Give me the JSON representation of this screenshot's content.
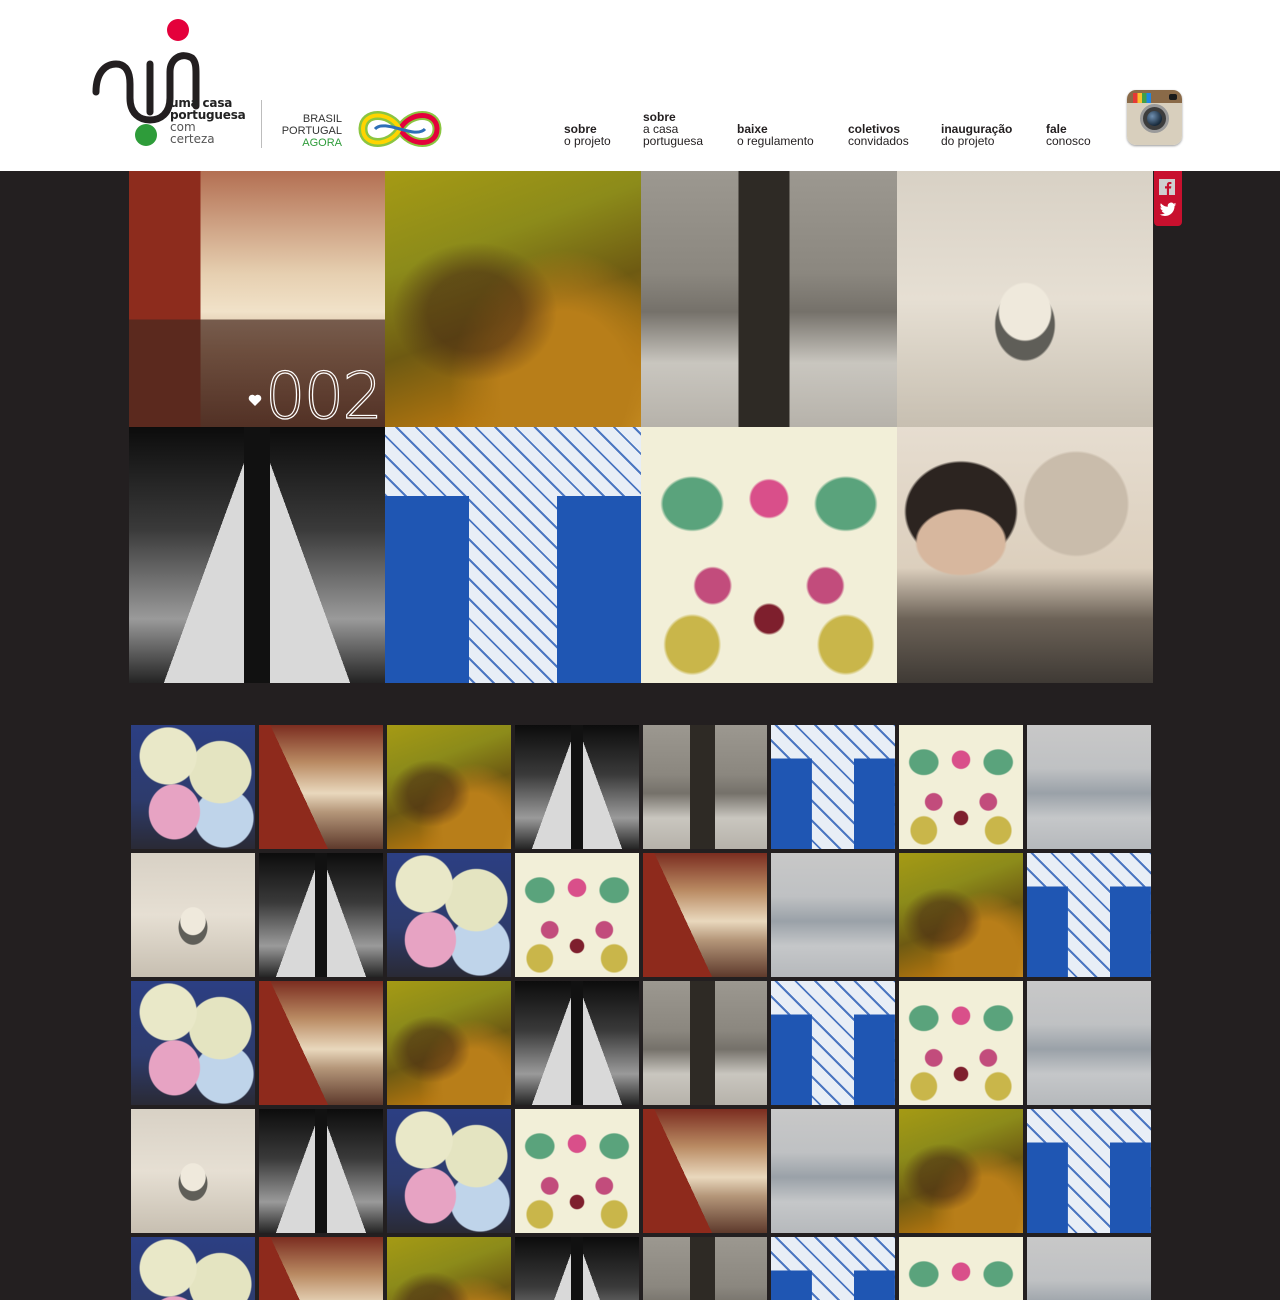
{
  "brand": {
    "logo_lines": [
      "uma casa",
      "portuguesa",
      "com",
      "certeza"
    ],
    "partner_lines": [
      "BRASIL",
      "PORTUGAL",
      "AGORA"
    ],
    "colors": {
      "red": "#e4003b",
      "green": "#2e9c3a",
      "accent": "#c8102e"
    }
  },
  "nav": [
    {
      "bold": "sobre",
      "rest": [
        "o projeto"
      ]
    },
    {
      "bold": "sobre",
      "rest": [
        "a casa",
        "portuguesa"
      ]
    },
    {
      "bold": "baixe",
      "rest": [
        "o regulamento"
      ]
    },
    {
      "bold": "coletivos",
      "rest": [
        "convidados"
      ]
    },
    {
      "bold": "inauguração",
      "rest": [
        "do projeto"
      ]
    },
    {
      "bold": "fale",
      "rest": [
        "conosco"
      ]
    }
  ],
  "icons": {
    "instagram": "instagram-icon",
    "facebook": "facebook-icon",
    "twitter": "twitter-icon",
    "heart": "heart-icon"
  },
  "feature": {
    "badge": "002",
    "tiles": [
      "city",
      "graffiti",
      "beach",
      "photo",
      "triangle",
      "doors",
      "floral",
      "portrait"
    ]
  },
  "thumbnails": {
    "rows": [
      [
        "flowers",
        "city",
        "graffiti",
        "triangle",
        "beach",
        "doors",
        "floral",
        "fog"
      ],
      [
        "photo",
        "triangle",
        "flowers",
        "floral",
        "city",
        "fog",
        "graffiti",
        "doors"
      ],
      [
        "flowers",
        "city",
        "graffiti",
        "triangle",
        "beach",
        "doors",
        "floral",
        "fog"
      ],
      [
        "photo",
        "triangle",
        "flowers",
        "floral",
        "city",
        "fog",
        "graffiti",
        "doors"
      ],
      [
        "flowers",
        "city",
        "graffiti",
        "triangle",
        "beach",
        "doors",
        "floral",
        "fog"
      ]
    ]
  }
}
